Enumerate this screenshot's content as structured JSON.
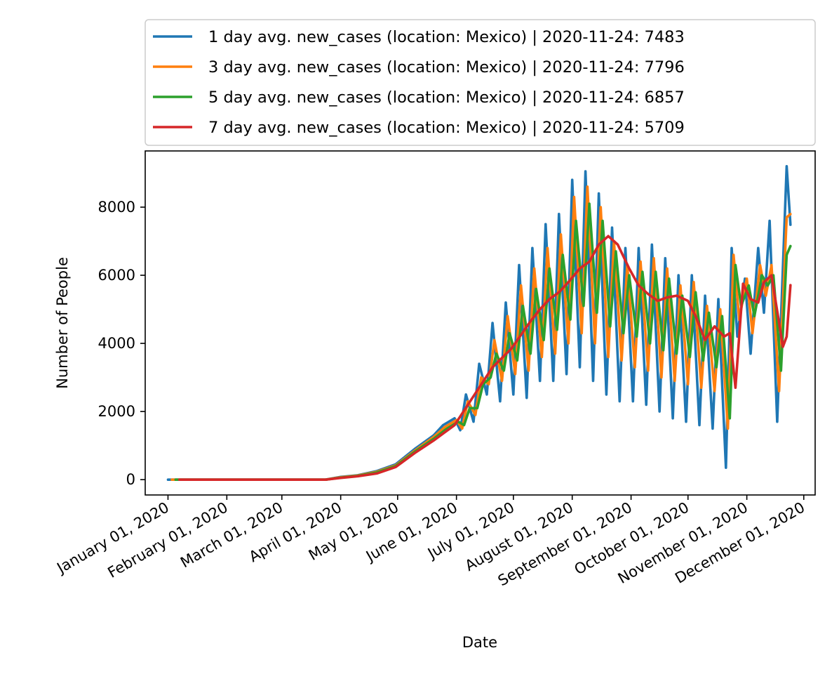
{
  "chart_data": {
    "type": "line",
    "title": "",
    "xlabel": "Date",
    "ylabel": "Number of People",
    "xlim": [
      "2019-12-20",
      "2020-12-07"
    ],
    "ylim": [
      -450,
      9650
    ],
    "y_ticks": [
      0,
      2000,
      4000,
      6000,
      8000
    ],
    "x_ticks": [
      {
        "date": "2020-01-01",
        "label": "January 01, 2020"
      },
      {
        "date": "2020-02-01",
        "label": "February 01, 2020"
      },
      {
        "date": "2020-03-01",
        "label": "March 01, 2020"
      },
      {
        "date": "2020-04-01",
        "label": "April 01, 2020"
      },
      {
        "date": "2020-05-01",
        "label": "May 01, 2020"
      },
      {
        "date": "2020-06-01",
        "label": "June 01, 2020"
      },
      {
        "date": "2020-07-01",
        "label": "July 01, 2020"
      },
      {
        "date": "2020-08-01",
        "label": "August 01, 2020"
      },
      {
        "date": "2020-09-01",
        "label": "September 01, 2020"
      },
      {
        "date": "2020-10-01",
        "label": "October 01, 2020"
      },
      {
        "date": "2020-11-01",
        "label": "November 01, 2020"
      },
      {
        "date": "2020-12-01",
        "label": "December 01, 2020"
      }
    ],
    "grid": false,
    "legend_position": "top, above plot",
    "series_label_template": "{name}  |  {end_date}: {end_value}",
    "series": [
      {
        "name": "1 day avg. new_cases (location: Mexico)",
        "end_date": "2020-11-24",
        "end_value": 7483,
        "color": "#1f77b4",
        "x": [
          "2020-01-01",
          "2020-03-24",
          "2020-04-01",
          "2020-04-10",
          "2020-04-20",
          "2020-04-30",
          "2020-05-10",
          "2020-05-20",
          "2020-05-25",
          "2020-05-31",
          "2020-06-03",
          "2020-06-06",
          "2020-06-10",
          "2020-06-13",
          "2020-06-17",
          "2020-06-20",
          "2020-06-24",
          "2020-06-27",
          "2020-07-01",
          "2020-07-04",
          "2020-07-08",
          "2020-07-11",
          "2020-07-15",
          "2020-07-18",
          "2020-07-22",
          "2020-07-25",
          "2020-07-29",
          "2020-08-01",
          "2020-08-05",
          "2020-08-08",
          "2020-08-12",
          "2020-08-15",
          "2020-08-19",
          "2020-08-22",
          "2020-08-26",
          "2020-08-29",
          "2020-09-02",
          "2020-09-05",
          "2020-09-09",
          "2020-09-12",
          "2020-09-16",
          "2020-09-19",
          "2020-09-23",
          "2020-09-26",
          "2020-09-30",
          "2020-10-03",
          "2020-10-07",
          "2020-10-10",
          "2020-10-14",
          "2020-10-17",
          "2020-10-21",
          "2020-10-24",
          "2020-10-27",
          "2020-10-31",
          "2020-11-03",
          "2020-11-07",
          "2020-11-10",
          "2020-11-13",
          "2020-11-17",
          "2020-11-22",
          "2020-11-24"
        ],
        "y": [
          0,
          0,
          80,
          130,
          250,
          450,
          900,
          1300,
          1600,
          1800,
          1450,
          2500,
          1700,
          3400,
          2500,
          4600,
          2300,
          5200,
          2500,
          6300,
          2400,
          6800,
          2900,
          7500,
          2900,
          7800,
          3100,
          8800,
          3300,
          9050,
          2900,
          8400,
          2500,
          7400,
          2300,
          6800,
          2300,
          6800,
          2200,
          6900,
          2000,
          6500,
          1800,
          6000,
          1700,
          6000,
          1600,
          5400,
          1500,
          5300,
          350,
          6800,
          4200,
          5900,
          3700,
          6800,
          4900,
          7600,
          1700,
          9200,
          7483
        ]
      },
      {
        "name": "3 day avg. new_cases (location: Mexico)",
        "end_date": "2020-11-24",
        "end_value": 7796,
        "color": "#ff7f0e",
        "x": [
          "2020-01-03",
          "2020-03-24",
          "2020-04-01",
          "2020-04-10",
          "2020-04-20",
          "2020-04-30",
          "2020-05-10",
          "2020-05-20",
          "2020-05-26",
          "2020-06-01",
          "2020-06-04",
          "2020-06-07",
          "2020-06-11",
          "2020-06-14",
          "2020-06-18",
          "2020-06-21",
          "2020-06-25",
          "2020-06-28",
          "2020-07-02",
          "2020-07-05",
          "2020-07-09",
          "2020-07-12",
          "2020-07-16",
          "2020-07-19",
          "2020-07-23",
          "2020-07-26",
          "2020-07-30",
          "2020-08-02",
          "2020-08-06",
          "2020-08-09",
          "2020-08-13",
          "2020-08-16",
          "2020-08-20",
          "2020-08-23",
          "2020-08-27",
          "2020-08-30",
          "2020-09-03",
          "2020-09-06",
          "2020-09-10",
          "2020-09-13",
          "2020-09-17",
          "2020-09-20",
          "2020-09-24",
          "2020-09-27",
          "2020-10-01",
          "2020-10-04",
          "2020-10-08",
          "2020-10-11",
          "2020-10-15",
          "2020-10-18",
          "2020-10-22",
          "2020-10-25",
          "2020-10-28",
          "2020-11-01",
          "2020-11-04",
          "2020-11-08",
          "2020-11-11",
          "2020-11-14",
          "2020-11-18",
          "2020-11-22",
          "2020-11-24"
        ],
        "y": [
          0,
          0,
          70,
          120,
          230,
          420,
          850,
          1250,
          1550,
          1750,
          1500,
          2300,
          1900,
          3000,
          2800,
          4100,
          2900,
          4800,
          3100,
          5700,
          3200,
          6200,
          3600,
          6800,
          3700,
          7200,
          4000,
          8300,
          4300,
          8600,
          4000,
          8000,
          3600,
          7000,
          3500,
          6300,
          3300,
          6400,
          3200,
          6500,
          3000,
          6200,
          2900,
          5700,
          2800,
          5800,
          2700,
          5100,
          2600,
          5000,
          1500,
          6600,
          4700,
          5900,
          4300,
          6300,
          5400,
          6300,
          2600,
          7700,
          7796
        ]
      },
      {
        "name": "5 day avg. new_cases (location: Mexico)",
        "end_date": "2020-11-24",
        "end_value": 6857,
        "color": "#2ca02c",
        "x": [
          "2020-01-05",
          "2020-03-24",
          "2020-04-01",
          "2020-04-10",
          "2020-04-20",
          "2020-04-30",
          "2020-05-10",
          "2020-05-20",
          "2020-05-27",
          "2020-06-02",
          "2020-06-05",
          "2020-06-08",
          "2020-06-12",
          "2020-06-15",
          "2020-06-19",
          "2020-06-22",
          "2020-06-26",
          "2020-06-29",
          "2020-07-03",
          "2020-07-06",
          "2020-07-10",
          "2020-07-13",
          "2020-07-17",
          "2020-07-20",
          "2020-07-24",
          "2020-07-27",
          "2020-07-31",
          "2020-08-03",
          "2020-08-07",
          "2020-08-10",
          "2020-08-14",
          "2020-08-17",
          "2020-08-21",
          "2020-08-24",
          "2020-08-28",
          "2020-08-31",
          "2020-09-04",
          "2020-09-07",
          "2020-09-11",
          "2020-09-14",
          "2020-09-18",
          "2020-09-21",
          "2020-09-25",
          "2020-09-28",
          "2020-10-02",
          "2020-10-05",
          "2020-10-09",
          "2020-10-12",
          "2020-10-16",
          "2020-10-19",
          "2020-10-23",
          "2020-10-26",
          "2020-10-29",
          "2020-11-02",
          "2020-11-05",
          "2020-11-09",
          "2020-11-12",
          "2020-11-15",
          "2020-11-19",
          "2020-11-22",
          "2020-11-24"
        ],
        "y": [
          0,
          0,
          60,
          110,
          210,
          400,
          820,
          1200,
          1500,
          1700,
          1600,
          2100,
          2100,
          2800,
          3000,
          3700,
          3200,
          4300,
          3500,
          5100,
          3700,
          5600,
          4100,
          6200,
          4400,
          6600,
          4700,
          7600,
          5100,
          8100,
          4900,
          7600,
          4500,
          6700,
          4300,
          6000,
          4200,
          6100,
          4000,
          6100,
          3800,
          5900,
          3700,
          5400,
          3600,
          5500,
          3500,
          4900,
          3300,
          4800,
          1800,
          6300,
          5100,
          5700,
          4800,
          6000,
          5700,
          6000,
          3200,
          6600,
          6857
        ]
      },
      {
        "name": "7 day avg. new_cases (location: Mexico)",
        "end_date": "2020-11-24",
        "end_value": 5709,
        "color": "#d62728",
        "x": [
          "2020-01-07",
          "2020-03-24",
          "2020-04-01",
          "2020-04-10",
          "2020-04-20",
          "2020-04-30",
          "2020-05-10",
          "2020-05-20",
          "2020-05-31",
          "2020-06-10",
          "2020-06-20",
          "2020-06-30",
          "2020-07-05",
          "2020-07-10",
          "2020-07-15",
          "2020-07-20",
          "2020-07-25",
          "2020-07-30",
          "2020-08-05",
          "2020-08-10",
          "2020-08-15",
          "2020-08-20",
          "2020-08-25",
          "2020-08-31",
          "2020-09-05",
          "2020-09-10",
          "2020-09-15",
          "2020-09-20",
          "2020-09-25",
          "2020-10-01",
          "2020-10-05",
          "2020-10-10",
          "2020-10-15",
          "2020-10-20",
          "2020-10-23",
          "2020-10-26",
          "2020-10-30",
          "2020-11-03",
          "2020-11-07",
          "2020-11-10",
          "2020-11-14",
          "2020-11-18",
          "2020-11-20",
          "2020-11-22",
          "2020-11-24"
        ],
        "y": [
          0,
          0,
          50,
          100,
          180,
          370,
          780,
          1150,
          1600,
          2450,
          3300,
          3850,
          4250,
          4650,
          5000,
          5300,
          5500,
          5800,
          6200,
          6400,
          6900,
          7150,
          6900,
          6200,
          5700,
          5450,
          5250,
          5350,
          5400,
          5250,
          4800,
          4100,
          4500,
          4200,
          4300,
          2700,
          5750,
          5300,
          5200,
          5800,
          6000,
          4600,
          3900,
          4200,
          5709
        ]
      }
    ]
  }
}
